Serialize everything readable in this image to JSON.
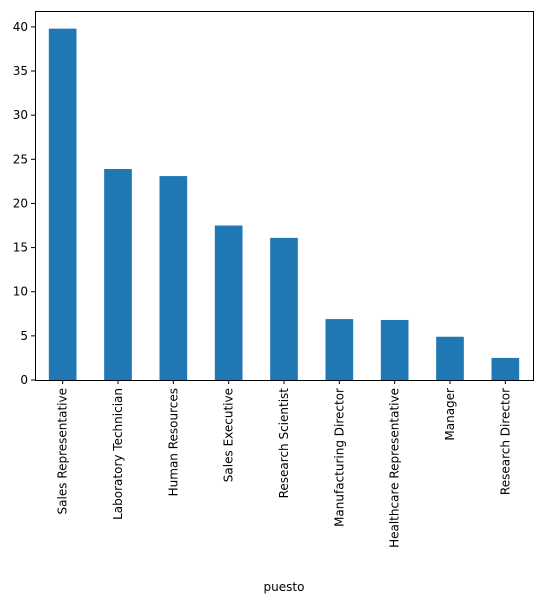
{
  "chart_data": {
    "type": "bar",
    "categories": [
      "Sales Representative",
      "Laboratory Technician",
      "Human Resources",
      "Sales Executive",
      "Research Scientist",
      "Manufacturing Director",
      "Healthcare Representative",
      "Manager",
      "Research Director"
    ],
    "values": [
      39.8,
      23.9,
      23.1,
      17.5,
      16.1,
      6.9,
      6.8,
      4.9,
      2.5
    ],
    "xlabel": "puesto",
    "ylabel": "",
    "ylim": [
      0,
      41.8
    ],
    "yticks": [
      0,
      5,
      10,
      15,
      20,
      25,
      30,
      35,
      40
    ],
    "grid": false,
    "bar_color": "#1f77b4"
  }
}
